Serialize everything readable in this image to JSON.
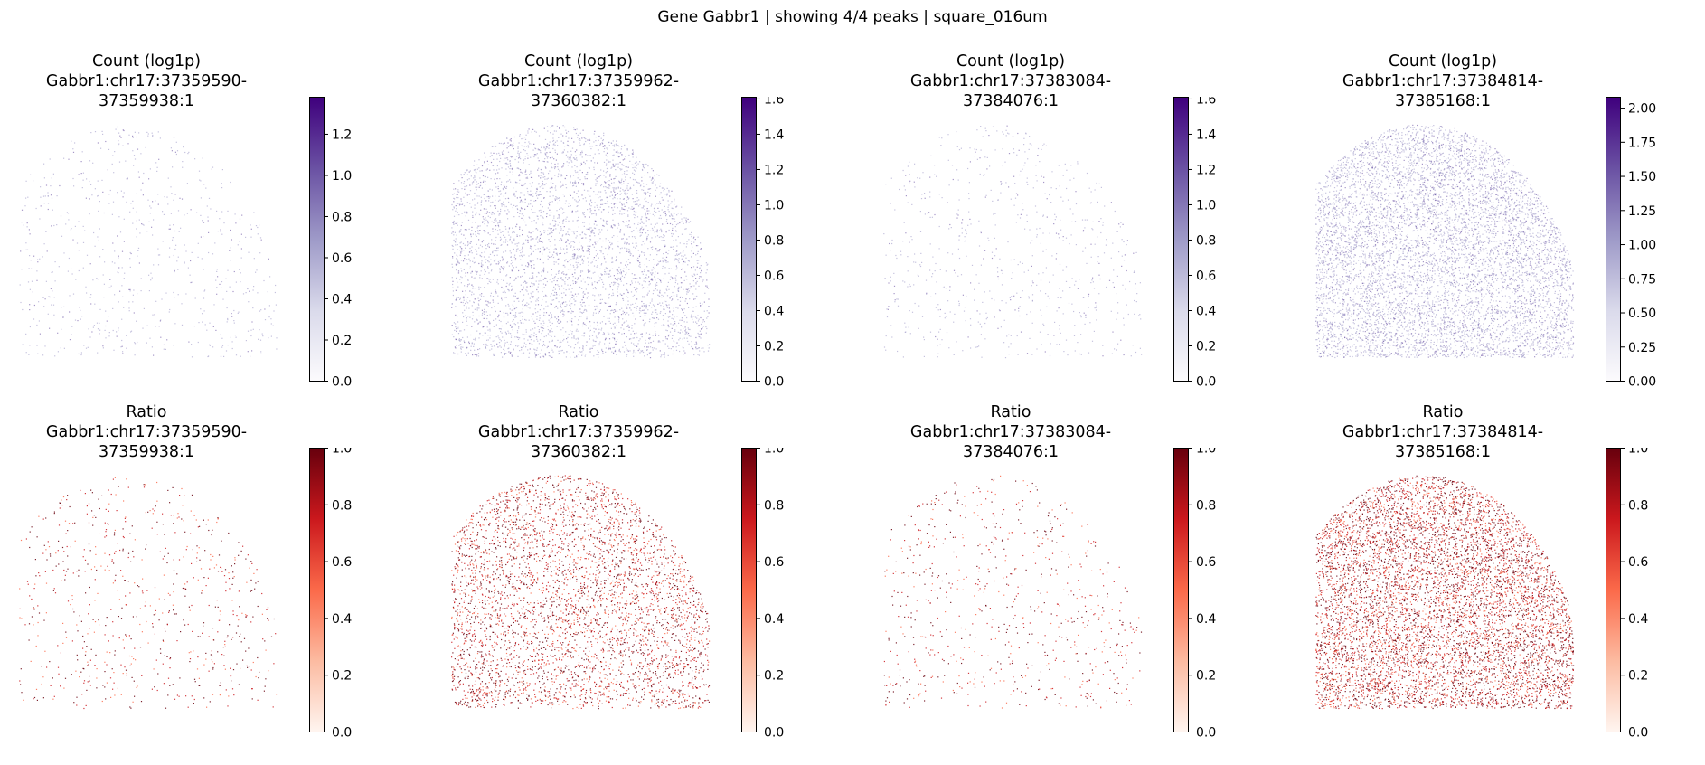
{
  "suptitle": "Gene Gabbr1 | showing 4/4 peaks | square_016um",
  "chart_data": [
    {
      "type": "scatter",
      "row": 0,
      "title": "Count (log1p)",
      "subtitle": "Gabbr1:chr17:37359590-37359938:1",
      "colormap": "Purples",
      "clim": [
        0,
        1.38
      ],
      "ticks": [
        "0.0",
        "0.2",
        "0.4",
        "0.6",
        "0.8",
        "1.0",
        "1.2"
      ],
      "tick_values": [
        0,
        0.2,
        0.4,
        0.6,
        0.8,
        1.0,
        1.2
      ],
      "density": "sparse",
      "grid": false
    },
    {
      "type": "scatter",
      "row": 0,
      "title": "Count (log1p)",
      "subtitle": "Gabbr1:chr17:37359962-37360382:1",
      "colormap": "Purples",
      "clim": [
        0,
        1.61
      ],
      "ticks": [
        "0.0",
        "0.2",
        "0.4",
        "0.6",
        "0.8",
        "1.0",
        "1.2",
        "1.4",
        "1.6"
      ],
      "tick_values": [
        0,
        0.2,
        0.4,
        0.6,
        0.8,
        1.0,
        1.2,
        1.4,
        1.6
      ],
      "density": "dense",
      "grid": false
    },
    {
      "type": "scatter",
      "row": 0,
      "title": "Count (log1p)",
      "subtitle": "Gabbr1:chr17:37383084-37384076:1",
      "colormap": "Purples",
      "clim": [
        0,
        1.61
      ],
      "ticks": [
        "0.0",
        "0.2",
        "0.4",
        "0.6",
        "0.8",
        "1.0",
        "1.2",
        "1.4",
        "1.6"
      ],
      "tick_values": [
        0,
        0.2,
        0.4,
        0.6,
        0.8,
        1.0,
        1.2,
        1.4,
        1.6
      ],
      "density": "sparse",
      "grid": false
    },
    {
      "type": "scatter",
      "row": 0,
      "title": "Count (log1p)",
      "subtitle": "Gabbr1:chr17:37384814-37385168:1",
      "colormap": "Purples",
      "clim": [
        0,
        2.08
      ],
      "ticks": [
        "0.00",
        "0.25",
        "0.50",
        "0.75",
        "1.00",
        "1.25",
        "1.50",
        "1.75",
        "2.00"
      ],
      "tick_values": [
        0,
        0.25,
        0.5,
        0.75,
        1.0,
        1.25,
        1.5,
        1.75,
        2.0
      ],
      "density": "very-dense",
      "grid": false
    },
    {
      "type": "scatter",
      "row": 1,
      "title": "Ratio",
      "subtitle": "Gabbr1:chr17:37359590-37359938:1",
      "colormap": "Reds",
      "clim": [
        0,
        1
      ],
      "ticks": [
        "0.0",
        "0.2",
        "0.4",
        "0.6",
        "0.8",
        "1.0"
      ],
      "tick_values": [
        0,
        0.2,
        0.4,
        0.6,
        0.8,
        1.0
      ],
      "density": "sparse",
      "grid": false
    },
    {
      "type": "scatter",
      "row": 1,
      "title": "Ratio",
      "subtitle": "Gabbr1:chr17:37359962-37360382:1",
      "colormap": "Reds",
      "clim": [
        0,
        1
      ],
      "ticks": [
        "0.0",
        "0.2",
        "0.4",
        "0.6",
        "0.8",
        "1.0"
      ],
      "tick_values": [
        0,
        0.2,
        0.4,
        0.6,
        0.8,
        1.0
      ],
      "density": "dense",
      "grid": false
    },
    {
      "type": "scatter",
      "row": 1,
      "title": "Ratio",
      "subtitle": "Gabbr1:chr17:37383084-37384076:1",
      "colormap": "Reds",
      "clim": [
        0,
        1
      ],
      "ticks": [
        "0.0",
        "0.2",
        "0.4",
        "0.6",
        "0.8",
        "1.0"
      ],
      "tick_values": [
        0,
        0.2,
        0.4,
        0.6,
        0.8,
        1.0
      ],
      "density": "sparse",
      "grid": false
    },
    {
      "type": "scatter",
      "row": 1,
      "title": "Ratio",
      "subtitle": "Gabbr1:chr17:37384814-37385168:1",
      "colormap": "Reds",
      "clim": [
        0,
        1
      ],
      "ticks": [
        "0.0",
        "0.2",
        "0.4",
        "0.6",
        "0.8",
        "1.0"
      ],
      "tick_values": [
        0,
        0.2,
        0.4,
        0.6,
        0.8,
        1.0
      ],
      "density": "very-dense",
      "grid": false
    }
  ],
  "colors": {
    "purples": [
      "#fcfbfd",
      "#dadaeb",
      "#9e9ac8",
      "#6a51a3",
      "#3f007d"
    ],
    "reds": [
      "#fff5f0",
      "#fcbba1",
      "#fb6a4a",
      "#cb181d",
      "#67000d"
    ]
  }
}
